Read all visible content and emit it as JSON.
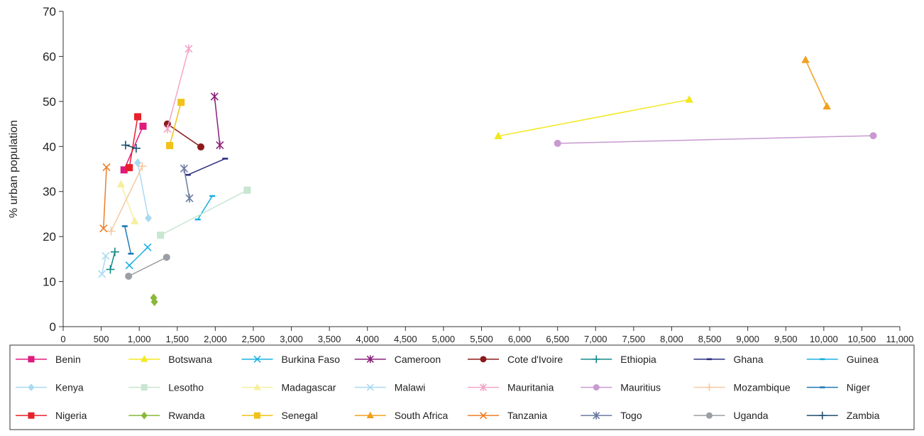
{
  "chart_data": {
    "type": "scatter",
    "xlabel": "",
    "ylabel": "% urban population",
    "xlim": [
      0,
      11000
    ],
    "ylim": [
      0,
      70
    ],
    "x_ticks": [
      0,
      500,
      1000,
      1500,
      2000,
      2500,
      3000,
      3500,
      4000,
      4500,
      5000,
      5500,
      6000,
      6500,
      7000,
      7500,
      8000,
      8500,
      9000,
      9500,
      10000,
      10500,
      11000
    ],
    "x_tick_labels": [
      "0",
      "500",
      "1,000",
      "1,500",
      "2,000",
      "2,500",
      "3,000",
      "3,500",
      "4,000",
      "4,500",
      "5,000",
      "5,500",
      "6,000",
      "6,500",
      "7,000",
      "7,500",
      "8,000",
      "8,500",
      "9,000",
      "9,500",
      "10,000",
      "10,500",
      "11,000"
    ],
    "y_ticks": [
      0,
      10,
      20,
      30,
      40,
      50,
      60,
      70
    ],
    "y_tick_labels": [
      "0",
      "10",
      "20",
      "30",
      "40",
      "50",
      "60",
      "70"
    ],
    "grid": false,
    "legend_position": "bottom",
    "series": [
      {
        "name": "Benin",
        "color": "#e0197d",
        "marker": "square",
        "points": [
          [
            800,
            34.8
          ],
          [
            1050,
            44.5
          ]
        ]
      },
      {
        "name": "Botswana",
        "color": "#f2e81e",
        "marker": "triangle",
        "points": [
          [
            5720,
            42.3
          ],
          [
            8230,
            50.4
          ]
        ]
      },
      {
        "name": "Burkina Faso",
        "color": "#1ab0e0",
        "marker": "x",
        "points": [
          [
            870,
            13.6
          ],
          [
            1110,
            17.6
          ]
        ]
      },
      {
        "name": "Cameroon",
        "color": "#8a1f7a",
        "marker": "asterisk",
        "points": [
          [
            1990,
            51.1
          ],
          [
            2060,
            40.3
          ]
        ]
      },
      {
        "name": "Cote d'Ivoire",
        "color": "#8b1a1a",
        "marker": "circle",
        "points": [
          [
            1370,
            45.0
          ],
          [
            1810,
            39.9
          ]
        ]
      },
      {
        "name": "Ethiopia",
        "color": "#138a8a",
        "marker": "plus",
        "points": [
          [
            620,
            12.7
          ],
          [
            680,
            16.6
          ]
        ]
      },
      {
        "name": "Ghana",
        "color": "#2b2f80",
        "marker": "dash",
        "points": [
          [
            1640,
            33.7
          ],
          [
            2130,
            37.3
          ]
        ]
      },
      {
        "name": "Guinea",
        "color": "#1ab0e0",
        "marker": "dash",
        "points": [
          [
            1770,
            23.8
          ],
          [
            1960,
            29.0
          ]
        ]
      },
      {
        "name": "Kenya",
        "color": "#a9daf0",
        "marker": "diamond",
        "points": [
          [
            980,
            36.4
          ],
          [
            1120,
            24.1
          ]
        ]
      },
      {
        "name": "Lesotho",
        "color": "#c8e6d0",
        "marker": "square",
        "points": [
          [
            1280,
            20.3
          ],
          [
            2420,
            30.3
          ]
        ]
      },
      {
        "name": "Madagascar",
        "color": "#f5efa0",
        "marker": "triangle",
        "points": [
          [
            760,
            31.6
          ],
          [
            940,
            23.4
          ]
        ]
      },
      {
        "name": "Malawi",
        "color": "#a9daf0",
        "marker": "x",
        "points": [
          [
            510,
            11.7
          ],
          [
            560,
            15.7
          ]
        ]
      },
      {
        "name": "Mauritania",
        "color": "#f4a6c8",
        "marker": "asterisk",
        "points": [
          [
            1370,
            43.9
          ],
          [
            1650,
            61.7
          ]
        ]
      },
      {
        "name": "Mauritius",
        "color": "#c89ad0",
        "marker": "circle",
        "points": [
          [
            6500,
            40.7
          ],
          [
            10650,
            42.4
          ]
        ]
      },
      {
        "name": "Mozambique",
        "color": "#f5c9a0",
        "marker": "plus",
        "points": [
          [
            630,
            21.2
          ],
          [
            1040,
            35.6
          ]
        ]
      },
      {
        "name": "Niger",
        "color": "#1f78b4",
        "marker": "dash",
        "points": [
          [
            810,
            22.3
          ],
          [
            890,
            16.2
          ]
        ]
      },
      {
        "name": "Nigeria",
        "color": "#e8202a",
        "marker": "square",
        "points": [
          [
            870,
            35.3
          ],
          [
            980,
            46.6
          ]
        ]
      },
      {
        "name": "Rwanda",
        "color": "#8ab83a",
        "marker": "diamond",
        "points": [
          [
            1190,
            6.4
          ],
          [
            1200,
            5.5
          ]
        ]
      },
      {
        "name": "Senegal",
        "color": "#f2c21a",
        "marker": "square",
        "points": [
          [
            1400,
            40.2
          ],
          [
            1550,
            49.8
          ]
        ]
      },
      {
        "name": "South Africa",
        "color": "#f2a01e",
        "marker": "triangle",
        "points": [
          [
            9760,
            59.2
          ],
          [
            10040,
            48.9
          ]
        ]
      },
      {
        "name": "Tanzania",
        "color": "#ee7d2a",
        "marker": "x",
        "points": [
          [
            530,
            21.8
          ],
          [
            570,
            35.4
          ]
        ]
      },
      {
        "name": "Togo",
        "color": "#6a7aa0",
        "marker": "asterisk",
        "points": [
          [
            1590,
            35.1
          ],
          [
            1660,
            28.5
          ]
        ]
      },
      {
        "name": "Uganda",
        "color": "#9a9fa5",
        "marker": "circle",
        "points": [
          [
            860,
            11.2
          ],
          [
            1360,
            15.4
          ]
        ]
      },
      {
        "name": "Zambia",
        "color": "#1c4f6e",
        "marker": "plus",
        "points": [
          [
            820,
            40.3
          ],
          [
            960,
            39.6
          ]
        ]
      }
    ]
  }
}
